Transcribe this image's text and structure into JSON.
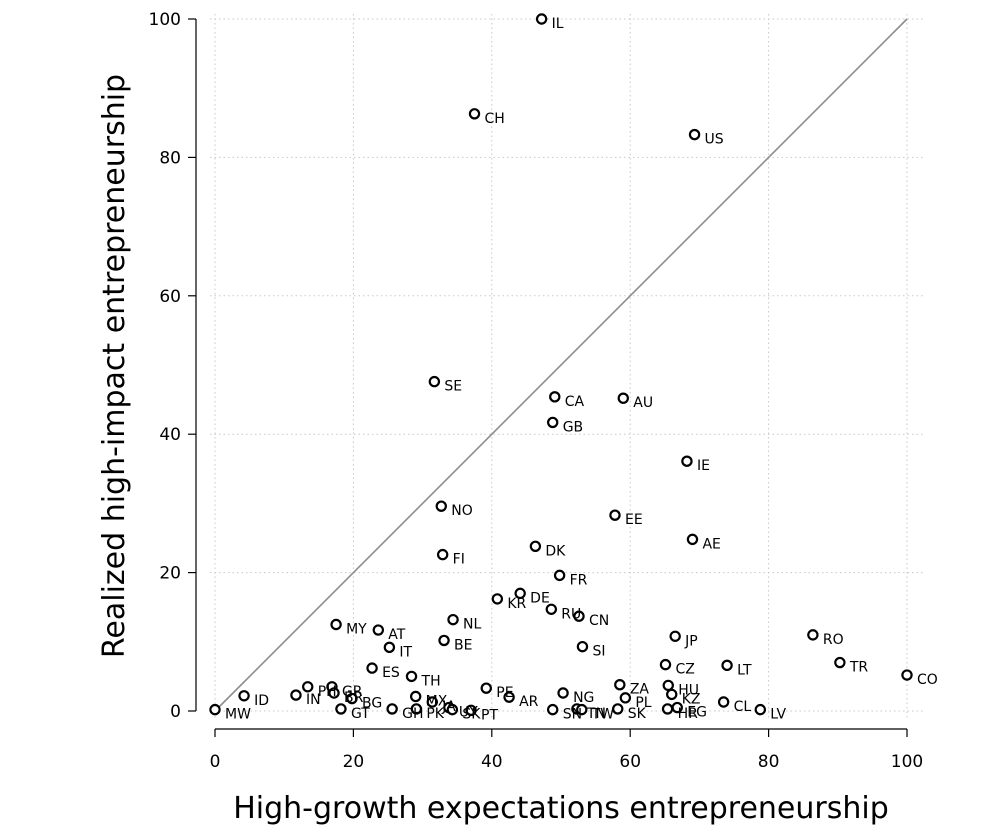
{
  "chart_data": {
    "type": "scatter",
    "xlabel": "High-growth expectations entrepreneurship",
    "ylabel": "Realized high-impact entrepreneurship",
    "xlim": [
      0,
      100
    ],
    "ylim": [
      0,
      100
    ],
    "xticks": [
      0,
      20,
      40,
      60,
      80,
      100
    ],
    "yticks": [
      0,
      20,
      40,
      60,
      80,
      100
    ],
    "grid": true,
    "reference_line": {
      "from": [
        0,
        0
      ],
      "to": [
        100,
        100
      ],
      "color": "#8c8c8c"
    },
    "marker_color": "#000000",
    "points": [
      {
        "label": "IL",
        "x": 47.2,
        "y": 100
      },
      {
        "label": "CH",
        "x": 37.5,
        "y": 86.3
      },
      {
        "label": "US",
        "x": 69.3,
        "y": 83.3
      },
      {
        "label": "SE",
        "x": 31.7,
        "y": 47.6
      },
      {
        "label": "CA",
        "x": 49.1,
        "y": 45.4
      },
      {
        "label": "AU",
        "x": 59.0,
        "y": 45.2
      },
      {
        "label": "GB",
        "x": 48.8,
        "y": 41.7
      },
      {
        "label": "IE",
        "x": 68.2,
        "y": 36.1
      },
      {
        "label": "NO",
        "x": 32.7,
        "y": 29.6
      },
      {
        "label": "EE",
        "x": 57.8,
        "y": 28.3
      },
      {
        "label": "AE",
        "x": 69.0,
        "y": 24.8
      },
      {
        "label": "DK",
        "x": 46.3,
        "y": 23.8
      },
      {
        "label": "FI",
        "x": 32.9,
        "y": 22.6
      },
      {
        "label": "FR",
        "x": 49.8,
        "y": 19.6
      },
      {
        "label": "DE",
        "x": 44.1,
        "y": 17.0
      },
      {
        "label": "KR",
        "x": 40.8,
        "y": 16.2
      },
      {
        "label": "RU",
        "x": 48.6,
        "y": 14.7
      },
      {
        "label": "CN",
        "x": 52.6,
        "y": 13.7
      },
      {
        "label": "NL",
        "x": 34.4,
        "y": 13.2
      },
      {
        "label": "MY",
        "x": 17.5,
        "y": 12.5
      },
      {
        "label": "AT",
        "x": 23.6,
        "y": 11.7
      },
      {
        "label": "RO",
        "x": 86.4,
        "y": 11.0
      },
      {
        "label": "JP",
        "x": 66.5,
        "y": 10.8
      },
      {
        "label": "BE",
        "x": 33.1,
        "y": 10.2
      },
      {
        "label": "IT",
        "x": 25.2,
        "y": 9.2
      },
      {
        "label": "SI",
        "x": 53.1,
        "y": 9.3
      },
      {
        "label": "TR",
        "x": 90.3,
        "y": 7.0
      },
      {
        "label": "CZ",
        "x": 65.1,
        "y": 6.7
      },
      {
        "label": "LT",
        "x": 74.0,
        "y": 6.6
      },
      {
        "label": "ES",
        "x": 22.7,
        "y": 6.2
      },
      {
        "label": "CO",
        "x": 100,
        "y": 5.2
      },
      {
        "label": "TH",
        "x": 28.4,
        "y": 5.0
      },
      {
        "label": "ZA",
        "x": 58.5,
        "y": 3.8
      },
      {
        "label": "HU",
        "x": 65.5,
        "y": 3.7
      },
      {
        "label": "PH",
        "x": 13.4,
        "y": 3.5
      },
      {
        "label": "GR",
        "x": 16.9,
        "y": 3.5
      },
      {
        "label": "PE",
        "x": 39.2,
        "y": 3.3
      },
      {
        "label": "NG",
        "x": 50.3,
        "y": 2.6
      },
      {
        "label": "IN",
        "x": 11.7,
        "y": 2.3
      },
      {
        "label": "BR",
        "x": 17.2,
        "y": 2.6
      },
      {
        "label": "ID",
        "x": 4.2,
        "y": 2.2
      },
      {
        "label": "MX",
        "x": 29.0,
        "y": 2.1
      },
      {
        "label": "KZ",
        "x": 66.0,
        "y": 2.4
      },
      {
        "label": "AR",
        "x": 42.5,
        "y": 2.0
      },
      {
        "label": "PL",
        "x": 59.3,
        "y": 1.9
      },
      {
        "label": "BG",
        "x": 19.8,
        "y": 1.8
      },
      {
        "label": "JA",
        "x": 31.4,
        "y": 1.3
      },
      {
        "label": "CL",
        "x": 73.5,
        "y": 1.3
      },
      {
        "label": "MW",
        "x": 0,
        "y": 0.2
      },
      {
        "label": "GT",
        "x": 18.2,
        "y": 0.3
      },
      {
        "label": "GH",
        "x": 25.6,
        "y": 0.3
      },
      {
        "label": "PK",
        "x": 29.1,
        "y": 0.3
      },
      {
        "label": "UY",
        "x": 33.8,
        "y": 0.5
      },
      {
        "label": "SK",
        "x": 34.3,
        "y": 0.2
      },
      {
        "label": "PT",
        "x": 37.0,
        "y": 0.1
      },
      {
        "label": "SN",
        "x": 48.8,
        "y": 0.2
      },
      {
        "label": "TN",
        "x": 52.3,
        "y": 0.3
      },
      {
        "label": "TW",
        "x": 53.0,
        "y": 0.2
      },
      {
        "label": "SK",
        "x": 58.2,
        "y": 0.3
      },
      {
        "label": "HR",
        "x": 65.4,
        "y": 0.3
      },
      {
        "label": "EG",
        "x": 66.8,
        "y": 0.5
      },
      {
        "label": "LV",
        "x": 78.8,
        "y": 0.2
      }
    ]
  }
}
